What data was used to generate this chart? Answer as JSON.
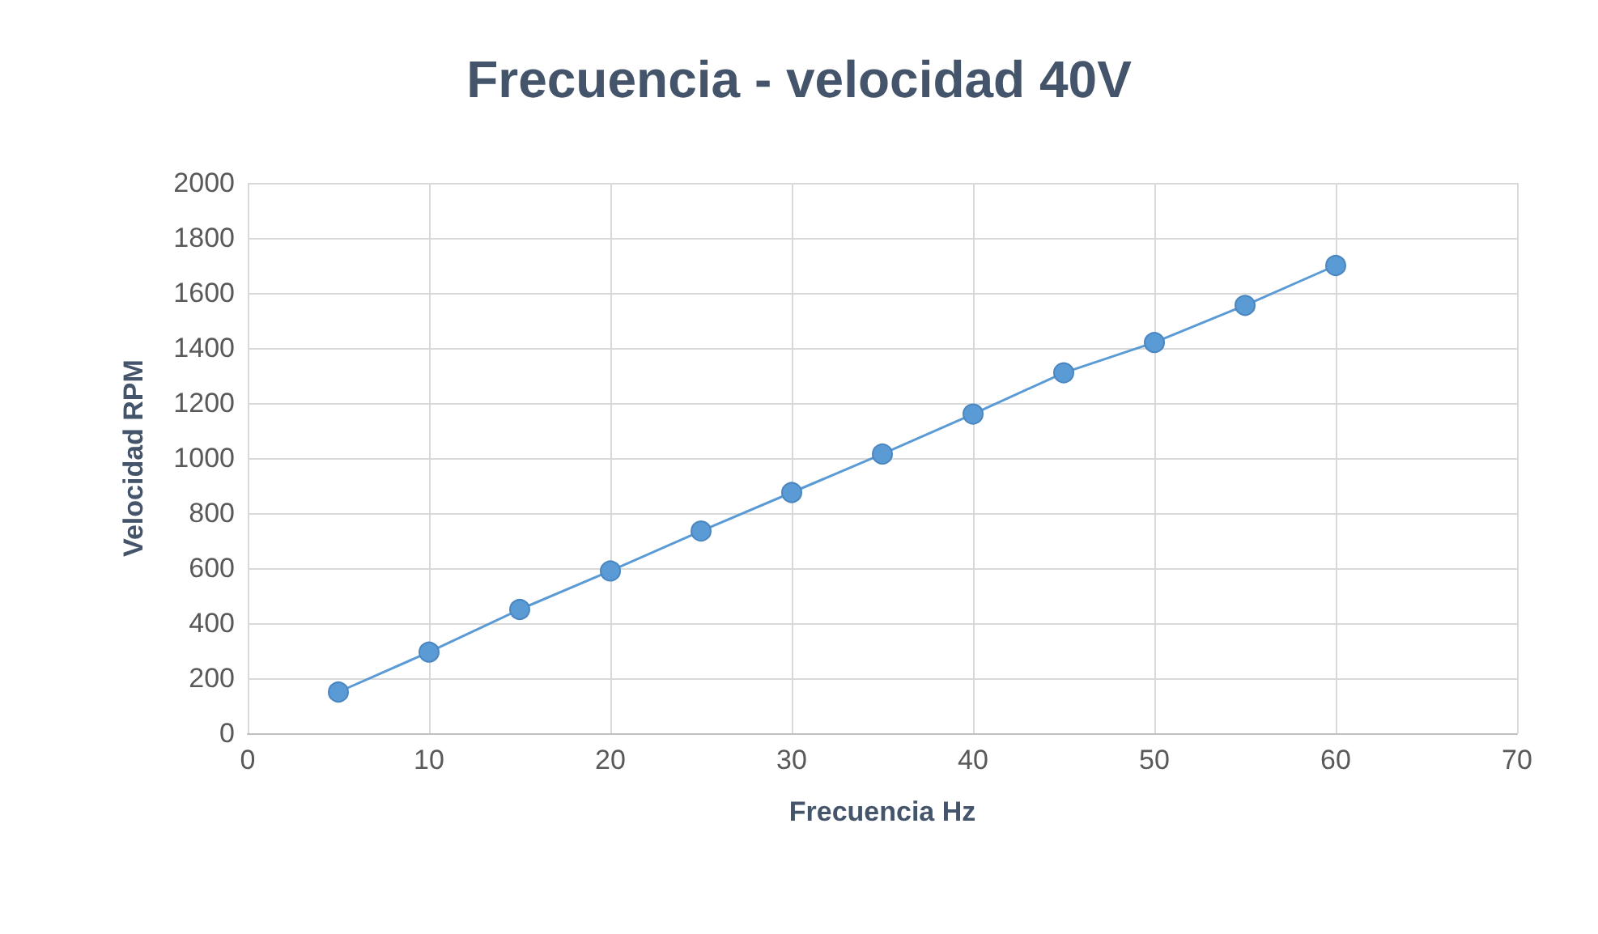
{
  "chart_data": {
    "type": "line",
    "title": "Frecuencia - velocidad 40V",
    "xlabel": "Frecuencia Hz",
    "ylabel": "Velocidad RPM",
    "x": [
      5,
      10,
      15,
      20,
      25,
      30,
      35,
      40,
      45,
      50,
      55,
      60
    ],
    "series": [
      {
        "color": "#5b9bd5",
        "values": [
          150,
          295,
          450,
          590,
          735,
          875,
          1015,
          1160,
          1310,
          1420,
          1555,
          1700
        ]
      }
    ],
    "xlim": [
      0,
      70
    ],
    "xticks": [
      0,
      10,
      20,
      30,
      40,
      50,
      60,
      70
    ],
    "ylim": [
      0,
      2000
    ],
    "yticks": [
      0,
      200,
      400,
      600,
      800,
      1000,
      1200,
      1400,
      1600,
      1800,
      2000
    ],
    "grid": true,
    "marker": "circle",
    "line_style": "solid"
  }
}
